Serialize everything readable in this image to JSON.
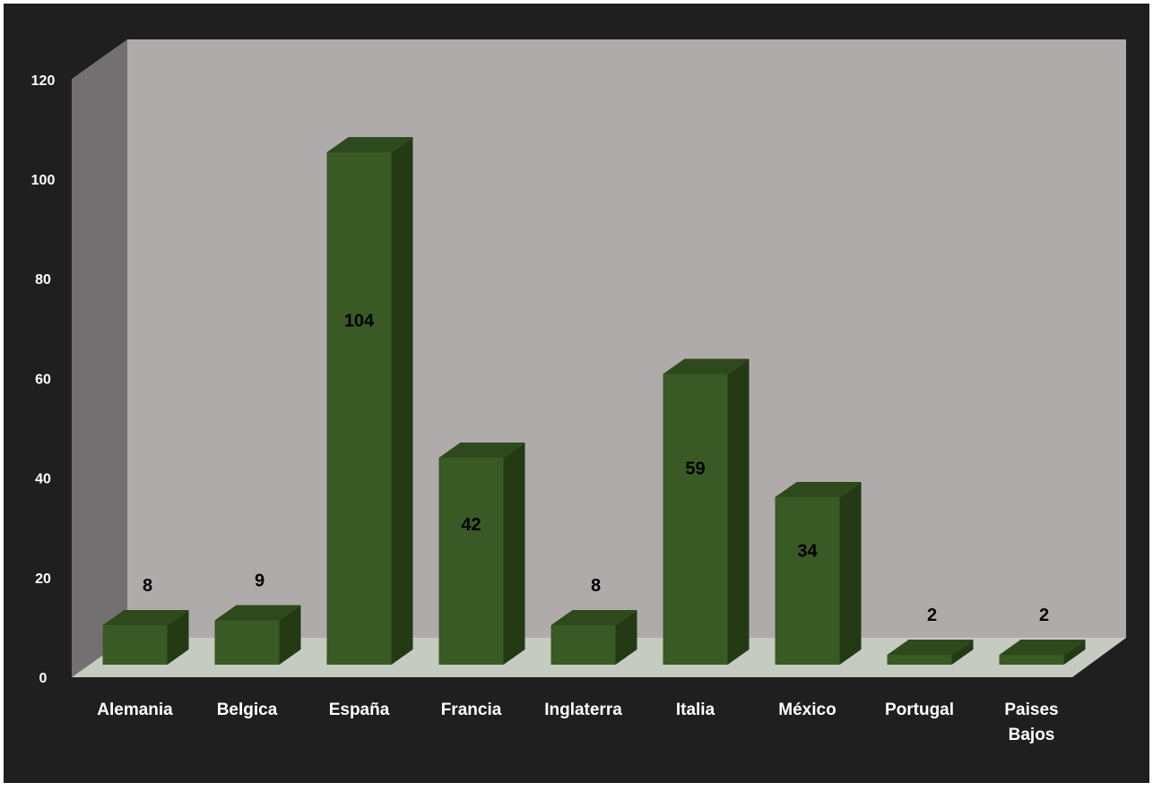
{
  "chart_data": {
    "type": "bar",
    "title": "",
    "xlabel": "",
    "ylabel": "",
    "categories": [
      "Alemania",
      "Belgica",
      "España",
      "Francia",
      "Inglaterra",
      "Italia",
      "México",
      "Portugal",
      "Paises Bajos"
    ],
    "values": [
      8,
      9,
      104,
      42,
      8,
      59,
      34,
      2,
      2
    ],
    "data_labels": [
      "8",
      "9",
      "104",
      "42",
      "8",
      "59",
      "34",
      "2",
      "2"
    ],
    "ylim": [
      0,
      120
    ],
    "yticks": [
      0,
      20,
      40,
      60,
      80,
      100,
      120
    ],
    "grid": false,
    "three_d": true,
    "legend": "none",
    "colors": {
      "outer_background": "#1f1f1f",
      "back_wall": "#b0abab",
      "side_wall": "#727070",
      "floor": "#c5cbc0",
      "bar_front": "#3a5a25",
      "bar_top": "#2e4a1c",
      "bar_side": "#243a15",
      "axis_text": "#ffffff",
      "data_label_text": "#000000"
    }
  }
}
